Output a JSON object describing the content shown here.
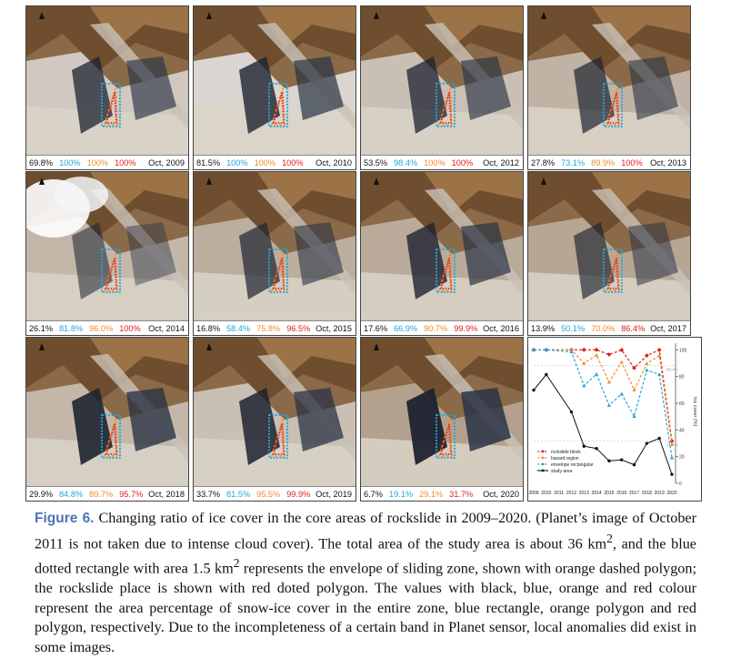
{
  "panels": [
    {
      "values": [
        "69.8%",
        "100%",
        "100%",
        "100%"
      ],
      "date": "Oct, 2009",
      "snow": 0.55,
      "shadow": 0.35,
      "cloud": false
    },
    {
      "values": [
        "81.5%",
        "100%",
        "100%",
        "100%"
      ],
      "date": "Oct, 2010",
      "snow": 0.7,
      "shadow": 0.4,
      "cloud": false
    },
    {
      "values": [
        "53.5%",
        "98.4%",
        "100%",
        "100%"
      ],
      "date": "Oct, 2012",
      "snow": 0.45,
      "shadow": 0.35,
      "cloud": false
    },
    {
      "values": [
        "27.8%",
        "73.1%",
        "89.9%",
        "100%"
      ],
      "date": "Oct, 2013",
      "snow": 0.3,
      "shadow": 0.3,
      "cloud": false
    },
    {
      "values": [
        "26.1%",
        "81.8%",
        "96.0%",
        "100%"
      ],
      "date": "Oct, 2014",
      "snow": 0.35,
      "shadow": 0.15,
      "cloud": true
    },
    {
      "values": [
        "16.8%",
        "58.4%",
        "75.8%",
        "96.5%"
      ],
      "date": "Oct, 2015",
      "snow": 0.25,
      "shadow": 0.3,
      "cloud": false
    },
    {
      "values": [
        "17.6%",
        "66.9%",
        "90.7%",
        "99.9%"
      ],
      "date": "Oct, 2016",
      "snow": 0.2,
      "shadow": 0.4,
      "cloud": false
    },
    {
      "values": [
        "13.9%",
        "50.1%",
        "70.0%",
        "86.4%"
      ],
      "date": "Oct, 2017",
      "snow": 0.15,
      "shadow": 0.25,
      "cloud": false
    },
    {
      "values": [
        "29.9%",
        "84.8%",
        "89.7%",
        "95.7%"
      ],
      "date": "Oct, 2018",
      "snow": 0.35,
      "shadow": 0.5,
      "cloud": false
    },
    {
      "values": [
        "33.7%",
        "81.5%",
        "95.5%",
        "99.9%"
      ],
      "date": "Oct, 2019",
      "snow": 0.45,
      "shadow": 0.45,
      "cloud": false
    },
    {
      "values": [
        "6.7%",
        "19.1%",
        "29.1%",
        "31.7%"
      ],
      "date": "Oct, 2020",
      "snow": 0.1,
      "shadow": 0.55,
      "cloud": false
    }
  ],
  "chart_data": {
    "type": "line",
    "x": [
      "2009",
      "2010",
      "2011",
      "2012",
      "2013",
      "2014",
      "2015",
      "2016",
      "2017",
      "2018",
      "2019",
      "2020"
    ],
    "ylabel": "Ice cover (%)",
    "ylim": [
      0,
      105
    ],
    "yticks": [
      0,
      20,
      40,
      60,
      80,
      100
    ],
    "extra_ticks": [
      {
        "value": 88.4,
        "label": "88.4%"
      },
      {
        "value": 31.7,
        "label": "31.7%"
      }
    ],
    "series": [
      {
        "name": "rockslide  block",
        "color": "#e01b1b",
        "style": "dashed-diamond",
        "x": [
          2009,
          2010,
          2012,
          2013,
          2014,
          2015,
          2016,
          2017,
          2018,
          2019,
          2020
        ],
        "values": [
          100,
          100,
          100,
          100,
          100,
          96.5,
          99.9,
          86.4,
          95.7,
          99.9,
          31.7
        ]
      },
      {
        "name": "hazard region",
        "color": "#f08a2a",
        "style": "dashed-triangle",
        "x": [
          2009,
          2010,
          2012,
          2013,
          2014,
          2015,
          2016,
          2017,
          2018,
          2019,
          2020
        ],
        "values": [
          100,
          100,
          100,
          89.9,
          96.0,
          75.8,
          90.7,
          70.0,
          89.7,
          95.5,
          29.1
        ]
      },
      {
        "name": "envelope rectangular",
        "color": "#22a7d9",
        "style": "dashed-triangle",
        "x": [
          2009,
          2010,
          2012,
          2013,
          2014,
          2015,
          2016,
          2017,
          2018,
          2019,
          2020
        ],
        "values": [
          100,
          100,
          98.4,
          73.1,
          81.8,
          58.4,
          66.9,
          50.1,
          84.8,
          81.5,
          19.1
        ]
      },
      {
        "name": "study area",
        "color": "#111111",
        "style": "solid-dot",
        "x": [
          2009,
          2010,
          2012,
          2013,
          2014,
          2015,
          2016,
          2017,
          2018,
          2019,
          2020
        ],
        "values": [
          69.8,
          81.5,
          53.5,
          27.8,
          26.1,
          16.8,
          17.6,
          13.9,
          29.9,
          33.7,
          6.7
        ]
      }
    ]
  },
  "caption": {
    "figure_label": "Figure 6.",
    "text_1": " Changing ratio of ice cover in the core areas of rockslide in 2009–2020. (Planet’s image of October 2011 is not taken due to intense cloud cover). The total area of the study area is about 36 km",
    "sup_1": "2",
    "text_2": ", and the blue dotted rectangle with area 1.5 km",
    "sup_2": "2",
    "text_3": " represents the envelope of sliding zone, shown with orange dashed polygon; the rockslide place is shown with red doted polygon. The values with black, blue, orange and red colour represent the area percentage of snow-ice cover in the entire zone, blue rectangle, orange polygon and red polygon, respectively. Due to the incompleteness of a certain band in Planet sensor, local anomalies did exist in some images."
  }
}
